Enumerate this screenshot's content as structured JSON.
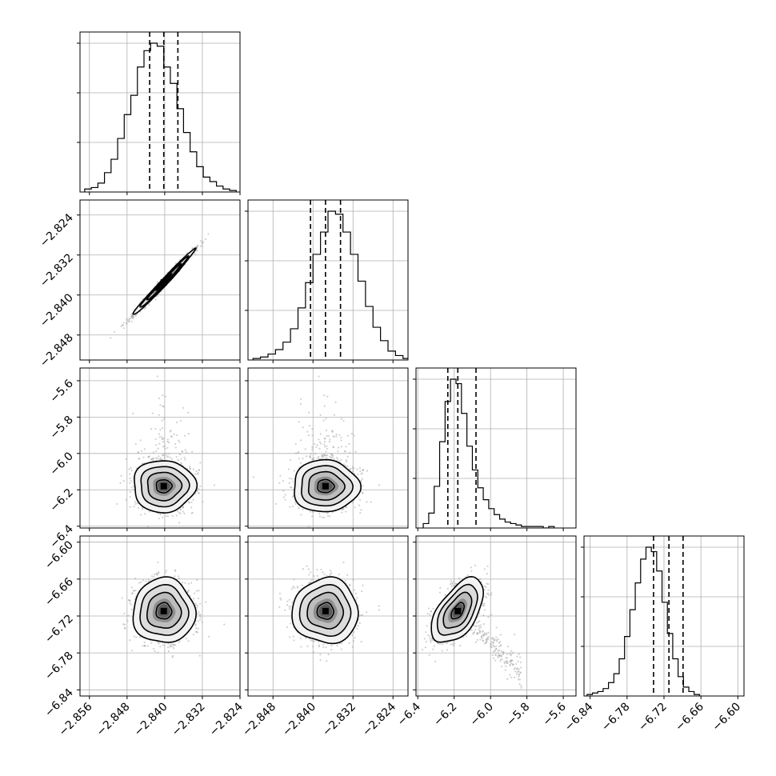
{
  "chart_data": {
    "type": "corner",
    "description_free": true,
    "n_params": 4,
    "grid": true,
    "quantile_line_style": "dashed",
    "colors": {
      "histogram": "#000000",
      "contour": "#000000",
      "scatter_points": "#9a9a9a",
      "density_peak": "#000000",
      "grid": "#b0b0b0"
    },
    "params": [
      {
        "range": [
          -2.858,
          -2.824
        ],
        "ticks": [
          -2.856,
          -2.848,
          -2.84,
          -2.832,
          -2.824
        ],
        "tick_labels": [
          "−2.856",
          "−2.848",
          "−2.840",
          "−2.832",
          "−2.824"
        ],
        "quantiles": [
          -2.8432,
          -2.8402,
          -2.8372
        ],
        "hist_edges_start": -2.857,
        "hist_bin_width": 0.0014,
        "hist_counts": [
          2,
          3,
          6,
          13,
          22,
          36,
          52,
          65,
          84,
          95,
          100,
          98,
          84,
          73,
          56,
          40,
          27,
          17,
          10,
          7,
          4,
          2,
          1
        ]
      },
      {
        "range": [
          -2.853,
          -2.821
        ],
        "ticks": [
          -2.848,
          -2.84,
          -2.832,
          -2.824
        ],
        "tick_labels": [
          "−2.848",
          "−2.840",
          "−2.832",
          "−2.824"
        ],
        "quantiles": [
          -2.8405,
          -2.8375,
          -2.8345
        ],
        "hist_edges_start": -2.852,
        "hist_bin_width": 0.0015,
        "hist_counts": [
          1,
          2,
          4,
          7,
          12,
          21,
          35,
          52,
          71,
          86,
          100,
          98,
          86,
          71,
          53,
          36,
          22,
          13,
          6,
          3,
          1,
          1
        ]
      },
      {
        "range": [
          -6.41,
          -5.53
        ],
        "ticks": [
          -6.4,
          -6.2,
          -6.0,
          -5.8,
          -5.6
        ],
        "tick_labels": [
          "−6.4",
          "−6.2",
          "−6.0",
          "−5.8",
          "−5.6"
        ],
        "quantiles": [
          -6.235,
          -6.18,
          -6.08
        ],
        "hist_edges_start": -6.37,
        "hist_bin_width": 0.03,
        "hist_counts": [
          3,
          10,
          28,
          58,
          85,
          100,
          97,
          77,
          55,
          39,
          27,
          19,
          13,
          9,
          6,
          4,
          3,
          2,
          1,
          1,
          1,
          1,
          0,
          1
        ]
      },
      {
        "range": [
          -6.85,
          -6.59
        ],
        "ticks": [
          -6.84,
          -6.78,
          -6.72,
          -6.66,
          -6.6
        ],
        "tick_labels": [
          "−6.84",
          "−6.78",
          "−6.72",
          "−6.66",
          "−6.60"
        ],
        "quantiles": [
          -6.737,
          -6.712,
          -6.689
        ],
        "hist_edges_start": -6.845,
        "hist_bin_width": 0.0087,
        "hist_counts": [
          1,
          2,
          3,
          5,
          9,
          15,
          25,
          40,
          58,
          76,
          92,
          100,
          97,
          84,
          63,
          42,
          25,
          13,
          6,
          3,
          1
        ]
      }
    ],
    "pairs": [
      {
        "row": 1,
        "col": 0,
        "center": [
          -2.8402,
          -2.8375
        ],
        "sigma": [
          0.003,
          0.003
        ],
        "rho": 0.99
      },
      {
        "row": 2,
        "col": 0,
        "center": [
          -2.8402,
          -6.18
        ],
        "sigma": [
          0.003,
          0.065
        ],
        "rho": 0.0
      },
      {
        "row": 2,
        "col": 1,
        "center": [
          -2.8375,
          -6.18
        ],
        "sigma": [
          0.003,
          0.065
        ],
        "rho": 0.0
      },
      {
        "row": 3,
        "col": 0,
        "center": [
          -2.8402,
          -6.712
        ],
        "sigma": [
          0.003,
          0.024
        ],
        "rho": 0.0
      },
      {
        "row": 3,
        "col": 1,
        "center": [
          -2.8375,
          -6.712
        ],
        "sigma": [
          0.003,
          0.024
        ],
        "rho": 0.0
      },
      {
        "row": 3,
        "col": 2,
        "center": [
          -6.18,
          -6.712
        ],
        "sigma": [
          0.065,
          0.024
        ],
        "rho": 0.55
      }
    ]
  }
}
